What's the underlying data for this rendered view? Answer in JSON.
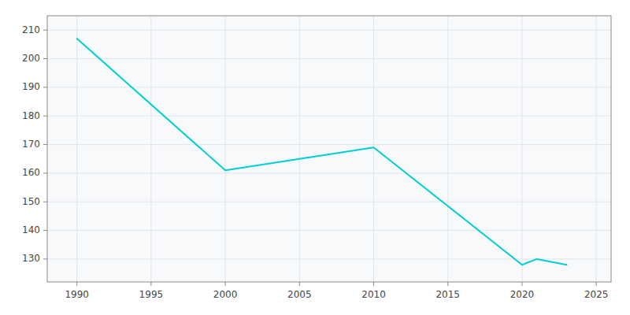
{
  "chart_data": {
    "type": "line",
    "x": [
      1990,
      2000,
      2005,
      2010,
      2020,
      2021,
      2023
    ],
    "values": [
      207,
      161,
      165,
      169,
      128,
      130,
      128
    ],
    "color": "#00CED1",
    "xlim": [
      1988,
      2026
    ],
    "ylim": [
      122,
      215
    ],
    "xticks": [
      1990,
      1995,
      2000,
      2005,
      2010,
      2015,
      2020,
      2025
    ],
    "yticks": [
      130,
      140,
      150,
      160,
      170,
      180,
      190,
      200,
      210
    ],
    "grid": true
  }
}
